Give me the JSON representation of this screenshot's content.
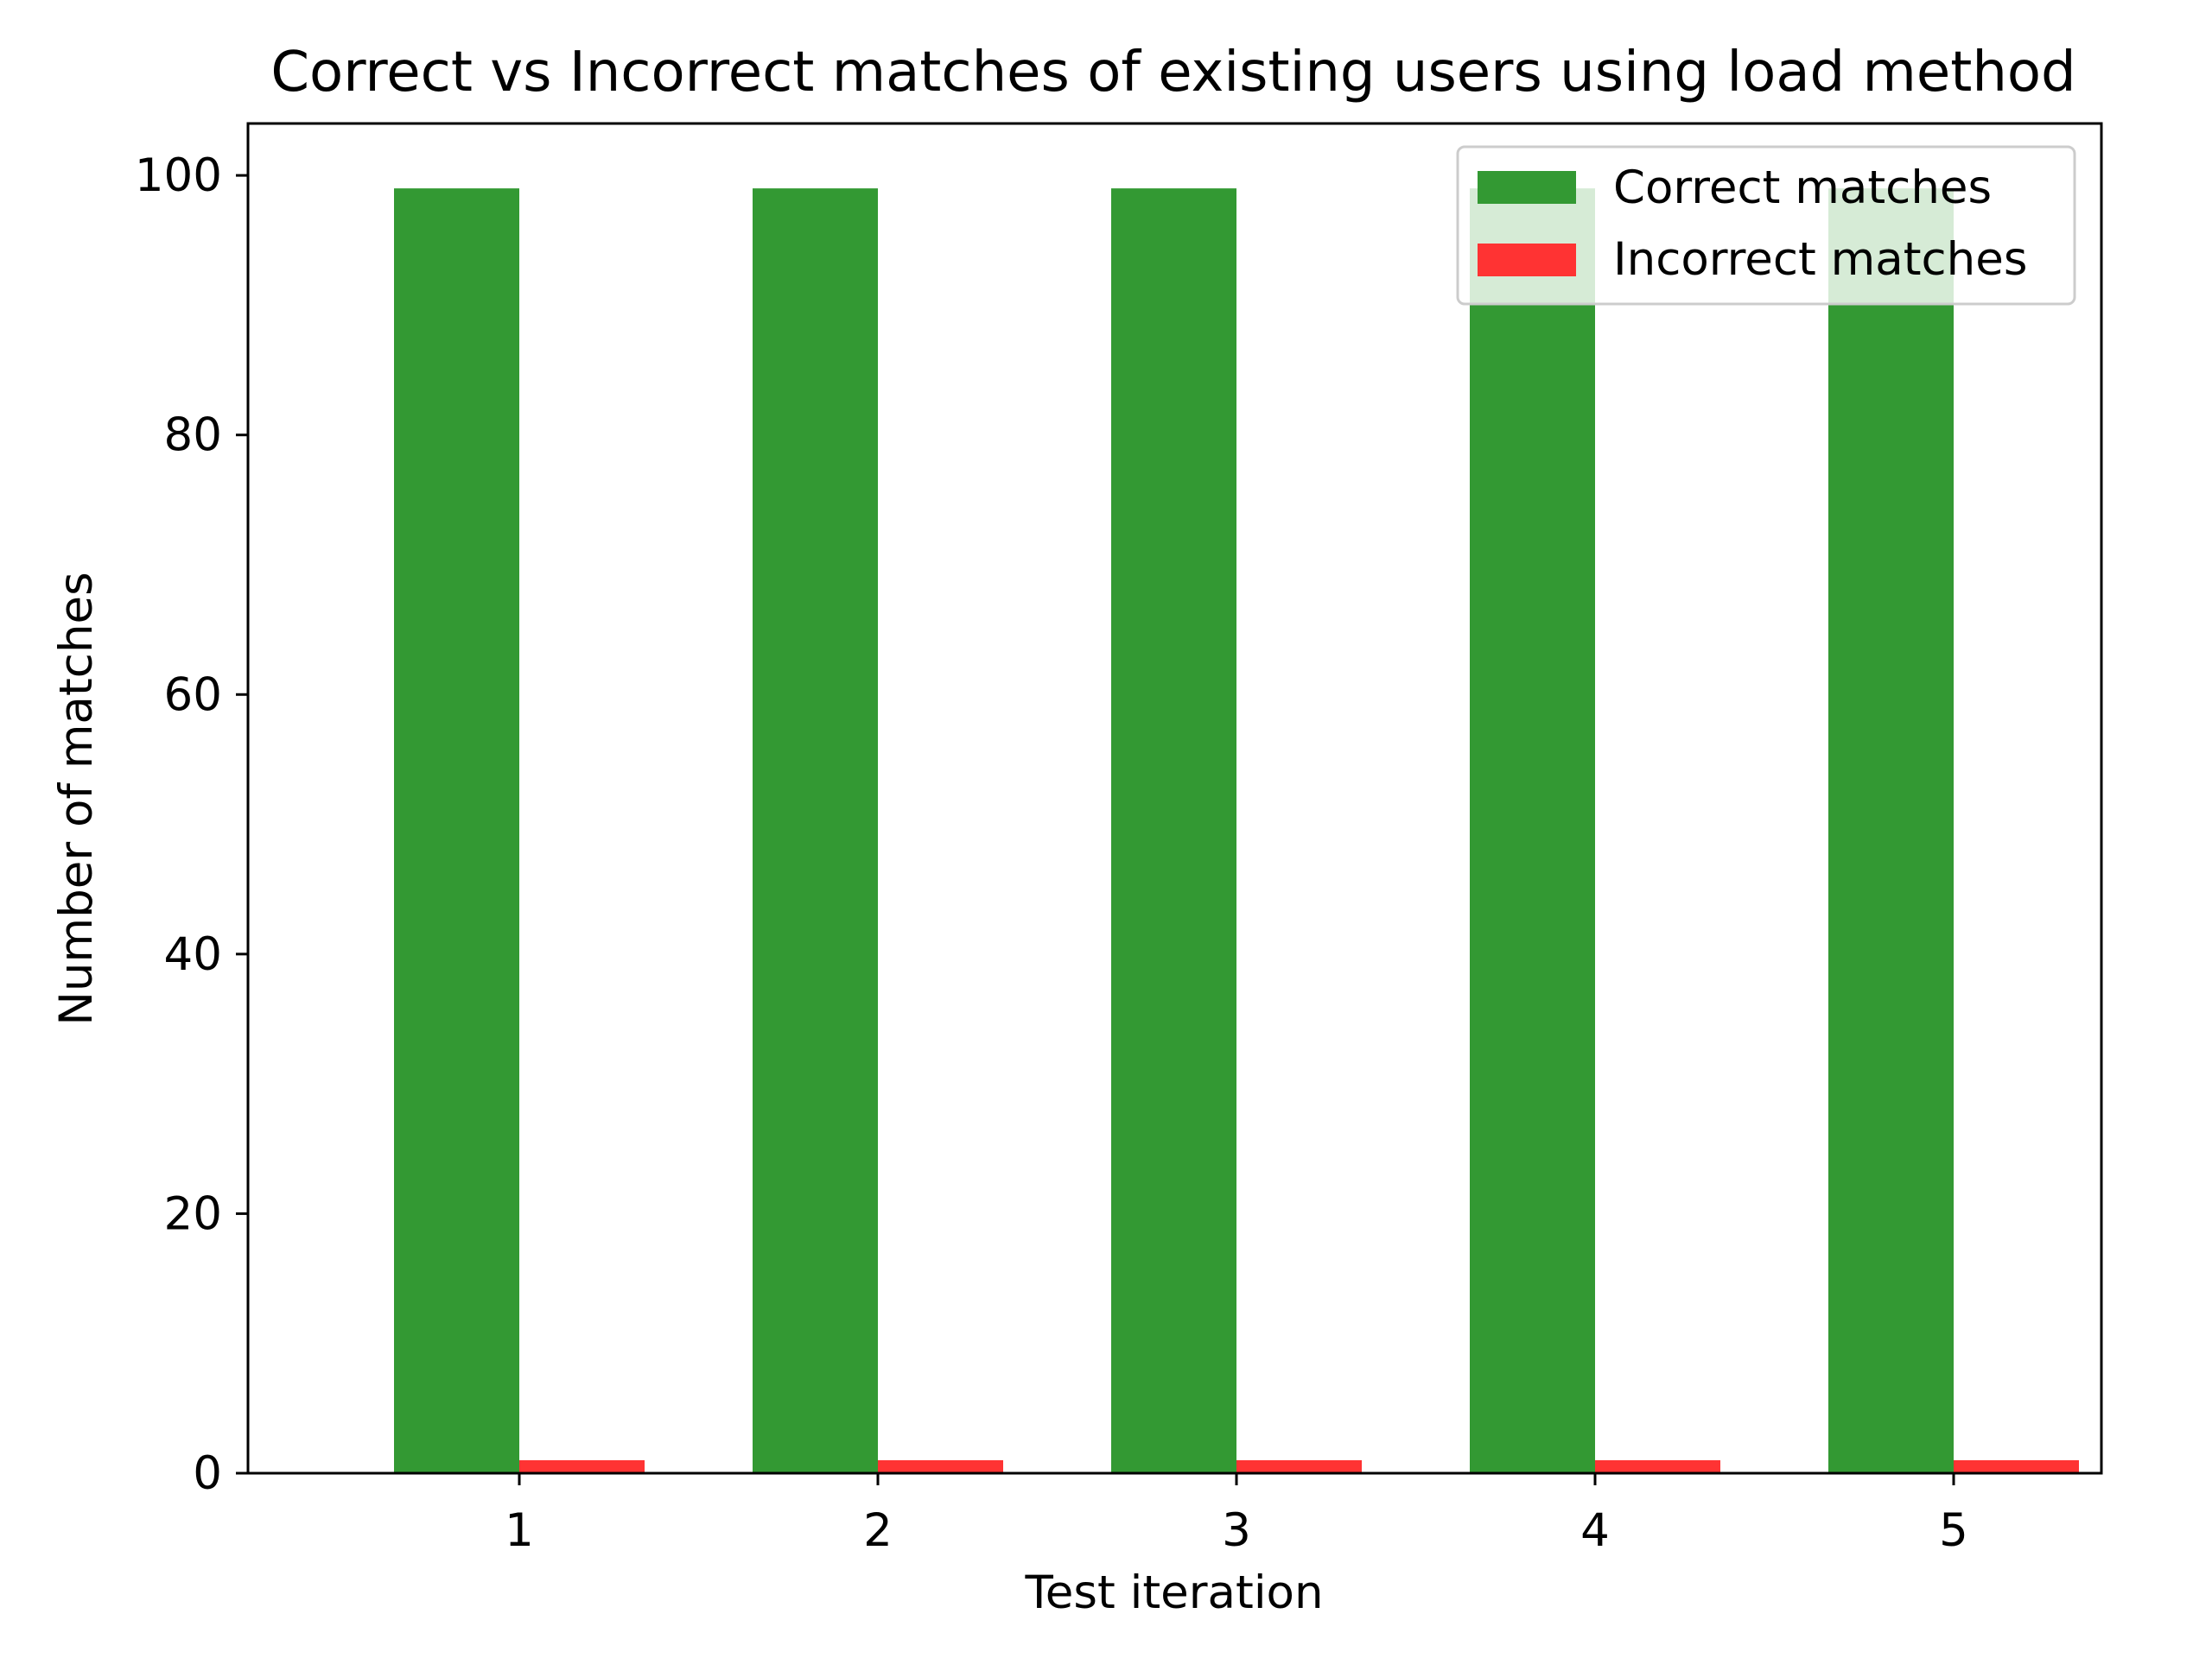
{
  "chart_data": {
    "type": "bar",
    "title": "Correct vs Incorrect matches of existing users using load method",
    "xlabel": "Test iteration",
    "ylabel": "Number of matches",
    "categories": [
      "1",
      "2",
      "3",
      "4",
      "5"
    ],
    "series": [
      {
        "name": "Correct matches",
        "values": [
          99,
          99,
          99,
          99,
          99
        ],
        "color": "#339933"
      },
      {
        "name": "Incorrect matches",
        "values": [
          1,
          1,
          1,
          1,
          1
        ],
        "color": "#ff3333"
      }
    ],
    "ylim": [
      0,
      104
    ],
    "yticks": [
      "0",
      "20",
      "40",
      "60",
      "80",
      "100"
    ],
    "grid": false,
    "legend_position": "top-right"
  }
}
